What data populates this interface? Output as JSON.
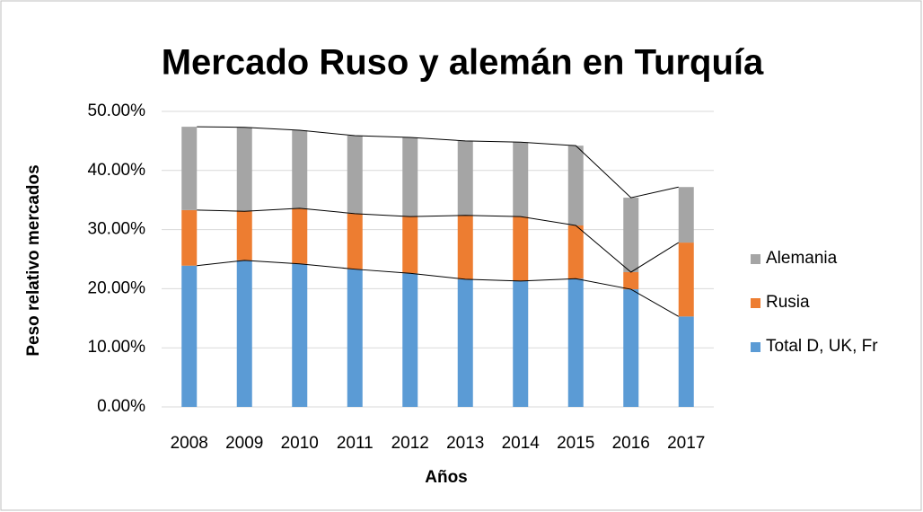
{
  "chart_data": {
    "type": "stacked_bar",
    "title": "Mercado Ruso y alemán en Turquía",
    "xlabel": "Años",
    "ylabel": "Peso relativo mercados",
    "categories": [
      "2008",
      "2009",
      "2010",
      "2011",
      "2012",
      "2013",
      "2014",
      "2015",
      "2016",
      "2017"
    ],
    "series": [
      {
        "name": "Total D, UK, Fr",
        "color": "#5b9bd5",
        "values": [
          23.9,
          24.8,
          24.2,
          23.3,
          22.6,
          21.6,
          21.3,
          21.7,
          19.9,
          15.3
        ]
      },
      {
        "name": "Rusia",
        "color": "#ed7d31",
        "values": [
          9.4,
          8.3,
          9.4,
          9.4,
          9.6,
          10.8,
          10.9,
          9.0,
          2.9,
          12.5
        ]
      },
      {
        "name": "Alemania",
        "color": "#a5a5a5",
        "values": [
          14.1,
          14.2,
          13.2,
          13.2,
          13.4,
          12.6,
          12.6,
          13.5,
          12.6,
          9.4
        ]
      }
    ],
    "ylim": [
      0,
      50
    ],
    "yticks": [
      {
        "value": 0,
        "label": "0.00%"
      },
      {
        "value": 10,
        "label": "10.00%"
      },
      {
        "value": 20,
        "label": "20.00%"
      },
      {
        "value": 30,
        "label": "30.00%"
      },
      {
        "value": 40,
        "label": "40.00%"
      },
      {
        "value": 50,
        "label": "50.00%"
      }
    ],
    "grid": true,
    "series_lines": true,
    "legend": "right"
  }
}
